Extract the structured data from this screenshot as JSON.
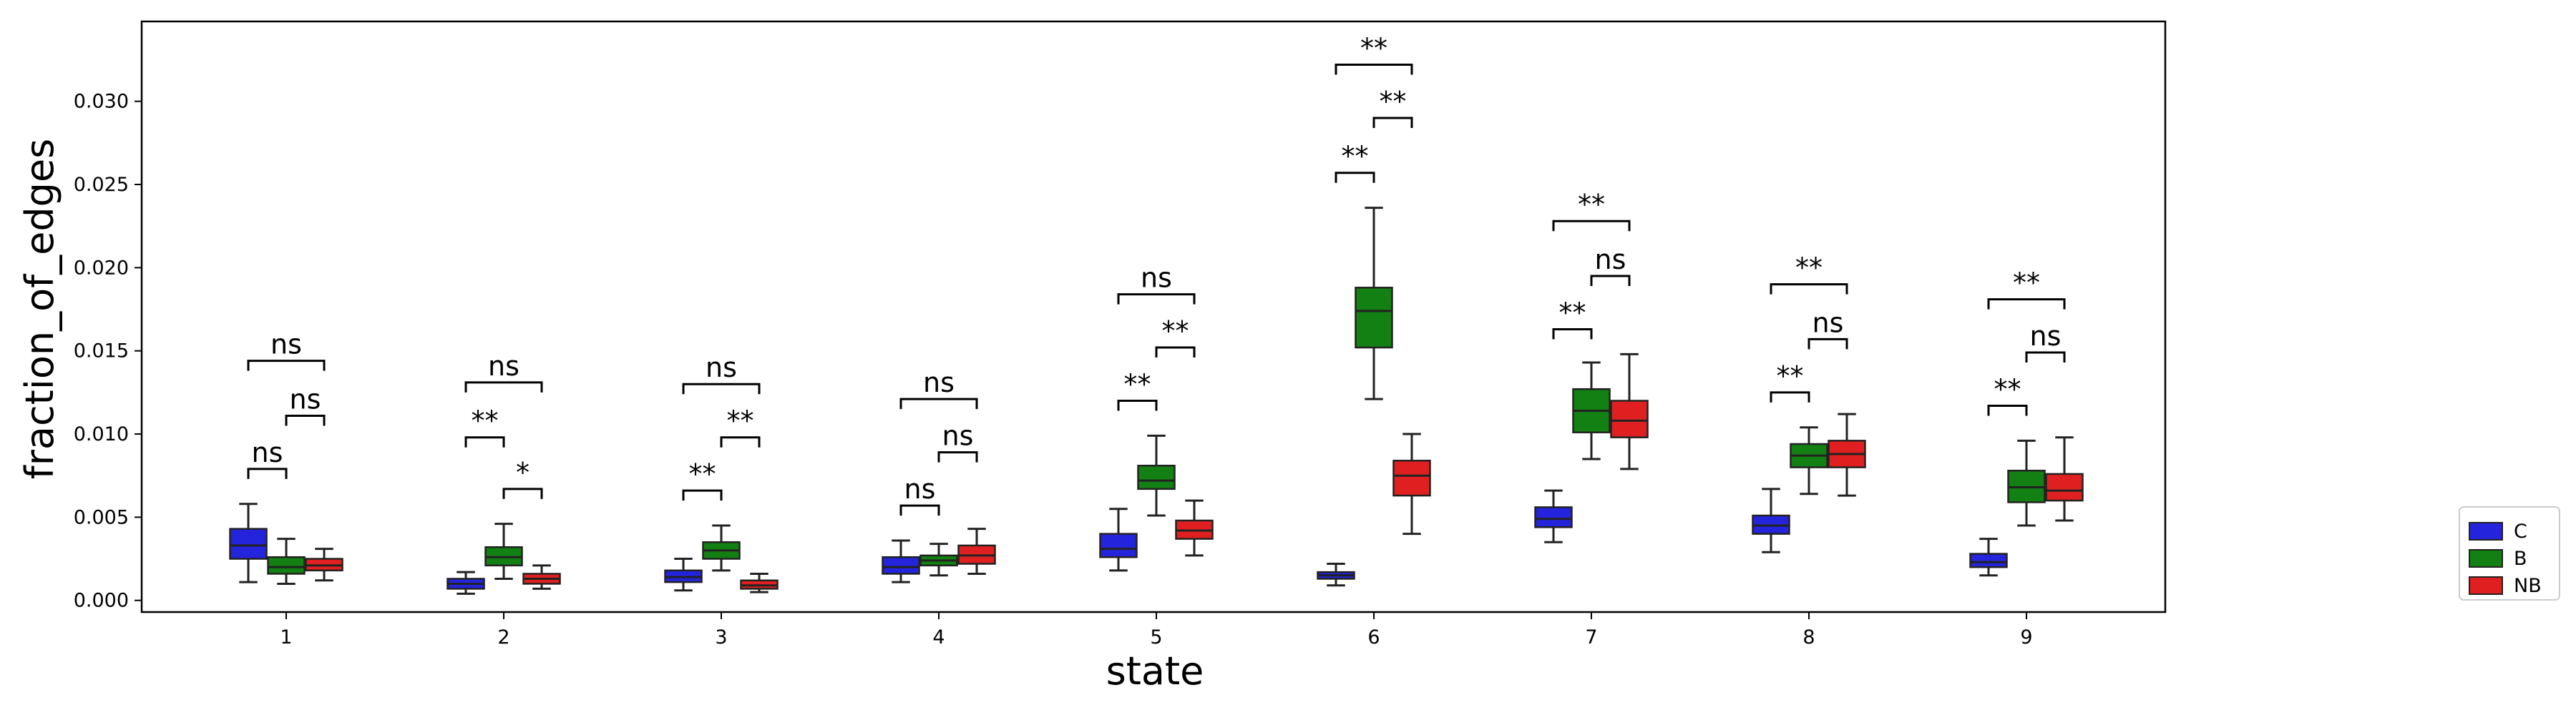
{
  "chart_data": {
    "type": "box",
    "xlabel": "state",
    "ylabel": "fraction_of_edges",
    "categories": [
      "1",
      "2",
      "3",
      "4",
      "5",
      "6",
      "7",
      "8",
      "9"
    ],
    "ylim": [
      -0.0007,
      0.0348
    ],
    "yticks": [
      0.0,
      0.005,
      0.01,
      0.015,
      0.02,
      0.025,
      0.03
    ],
    "ytick_labels": [
      "0.000",
      "0.005",
      "0.010",
      "0.015",
      "0.020",
      "0.025",
      "0.030"
    ],
    "grid": false,
    "legend_position": "right",
    "series": [
      {
        "name": "C",
        "color": "#2424dc",
        "boxes": [
          {
            "whislo": 0.0011,
            "q1": 0.0025,
            "med": 0.0033,
            "q3": 0.0043,
            "whishi": 0.0058
          },
          {
            "whislo": 0.0004,
            "q1": 0.0007,
            "med": 0.001,
            "q3": 0.0013,
            "whishi": 0.0017
          },
          {
            "whislo": 0.0006,
            "q1": 0.0011,
            "med": 0.0014,
            "q3": 0.0018,
            "whishi": 0.0025
          },
          {
            "whislo": 0.0011,
            "q1": 0.0016,
            "med": 0.002,
            "q3": 0.0026,
            "whishi": 0.0036
          },
          {
            "whislo": 0.0018,
            "q1": 0.0026,
            "med": 0.0031,
            "q3": 0.004,
            "whishi": 0.0055
          },
          {
            "whislo": 0.0009,
            "q1": 0.0013,
            "med": 0.0015,
            "q3": 0.0017,
            "whishi": 0.0022
          },
          {
            "whislo": 0.0035,
            "q1": 0.0044,
            "med": 0.0049,
            "q3": 0.0056,
            "whishi": 0.0066
          },
          {
            "whislo": 0.0029,
            "q1": 0.004,
            "med": 0.0045,
            "q3": 0.0051,
            "whishi": 0.0067
          },
          {
            "whislo": 0.0015,
            "q1": 0.002,
            "med": 0.0023,
            "q3": 0.0028,
            "whishi": 0.0037
          }
        ]
      },
      {
        "name": "B",
        "color": "#138013",
        "boxes": [
          {
            "whislo": 0.001,
            "q1": 0.0016,
            "med": 0.002,
            "q3": 0.0026,
            "whishi": 0.0037
          },
          {
            "whislo": 0.0013,
            "q1": 0.0021,
            "med": 0.0026,
            "q3": 0.0032,
            "whishi": 0.0046
          },
          {
            "whislo": 0.0018,
            "q1": 0.0025,
            "med": 0.003,
            "q3": 0.0035,
            "whishi": 0.0045
          },
          {
            "whislo": 0.0015,
            "q1": 0.0021,
            "med": 0.0024,
            "q3": 0.0027,
            "whishi": 0.0034
          },
          {
            "whislo": 0.0051,
            "q1": 0.0067,
            "med": 0.0072,
            "q3": 0.0081,
            "whishi": 0.0099
          },
          {
            "whislo": 0.0121,
            "q1": 0.0152,
            "med": 0.0174,
            "q3": 0.0188,
            "whishi": 0.0236
          },
          {
            "whislo": 0.0085,
            "q1": 0.0101,
            "med": 0.0114,
            "q3": 0.0127,
            "whishi": 0.0143
          },
          {
            "whislo": 0.0064,
            "q1": 0.008,
            "med": 0.0087,
            "q3": 0.0094,
            "whishi": 0.0104
          },
          {
            "whislo": 0.0045,
            "q1": 0.0059,
            "med": 0.0068,
            "q3": 0.0078,
            "whishi": 0.0096
          }
        ]
      },
      {
        "name": "NB",
        "color": "#e02020",
        "boxes": [
          {
            "whislo": 0.0012,
            "q1": 0.0018,
            "med": 0.0021,
            "q3": 0.0025,
            "whishi": 0.0031
          },
          {
            "whislo": 0.0007,
            "q1": 0.001,
            "med": 0.0013,
            "q3": 0.0016,
            "whishi": 0.0021
          },
          {
            "whislo": 0.0005,
            "q1": 0.0007,
            "med": 0.0009,
            "q3": 0.0012,
            "whishi": 0.0016
          },
          {
            "whislo": 0.0016,
            "q1": 0.0022,
            "med": 0.0027,
            "q3": 0.0033,
            "whishi": 0.0043
          },
          {
            "whislo": 0.0027,
            "q1": 0.0037,
            "med": 0.0042,
            "q3": 0.0048,
            "whishi": 0.006
          },
          {
            "whislo": 0.004,
            "q1": 0.0063,
            "med": 0.0075,
            "q3": 0.0084,
            "whishi": 0.01
          },
          {
            "whislo": 0.0079,
            "q1": 0.0098,
            "med": 0.0108,
            "q3": 0.012,
            "whishi": 0.0148
          },
          {
            "whislo": 0.0063,
            "q1": 0.008,
            "med": 0.0088,
            "q3": 0.0096,
            "whishi": 0.0112
          },
          {
            "whislo": 0.0048,
            "q1": 0.006,
            "med": 0.0066,
            "q3": 0.0076,
            "whishi": 0.0098
          }
        ]
      }
    ],
    "annotations": [
      {
        "category": "1",
        "pair": [
          "C",
          "B"
        ],
        "label": "ns",
        "y": 0.0079
      },
      {
        "category": "1",
        "pair": [
          "B",
          "NB"
        ],
        "label": "ns",
        "y": 0.0111
      },
      {
        "category": "1",
        "pair": [
          "C",
          "NB"
        ],
        "label": "ns",
        "y": 0.0144
      },
      {
        "category": "2",
        "pair": [
          "C",
          "B"
        ],
        "label": "**",
        "y": 0.0098
      },
      {
        "category": "2",
        "pair": [
          "B",
          "NB"
        ],
        "label": "*",
        "y": 0.0067
      },
      {
        "category": "2",
        "pair": [
          "C",
          "NB"
        ],
        "label": "ns",
        "y": 0.0131
      },
      {
        "category": "3",
        "pair": [
          "C",
          "B"
        ],
        "label": "**",
        "y": 0.0066
      },
      {
        "category": "3",
        "pair": [
          "B",
          "NB"
        ],
        "label": "**",
        "y": 0.0098
      },
      {
        "category": "3",
        "pair": [
          "C",
          "NB"
        ],
        "label": "ns",
        "y": 0.013
      },
      {
        "category": "4",
        "pair": [
          "C",
          "B"
        ],
        "label": "ns",
        "y": 0.0057
      },
      {
        "category": "4",
        "pair": [
          "B",
          "NB"
        ],
        "label": "ns",
        "y": 0.0089
      },
      {
        "category": "4",
        "pair": [
          "C",
          "NB"
        ],
        "label": "ns",
        "y": 0.0121
      },
      {
        "category": "5",
        "pair": [
          "C",
          "B"
        ],
        "label": "**",
        "y": 0.012
      },
      {
        "category": "5",
        "pair": [
          "B",
          "NB"
        ],
        "label": "**",
        "y": 0.0152
      },
      {
        "category": "5",
        "pair": [
          "C",
          "NB"
        ],
        "label": "ns",
        "y": 0.0184
      },
      {
        "category": "6",
        "pair": [
          "C",
          "B"
        ],
        "label": "**",
        "y": 0.0257
      },
      {
        "category": "6",
        "pair": [
          "B",
          "NB"
        ],
        "label": "**",
        "y": 0.029
      },
      {
        "category": "6",
        "pair": [
          "C",
          "NB"
        ],
        "label": "**",
        "y": 0.0322
      },
      {
        "category": "7",
        "pair": [
          "C",
          "B"
        ],
        "label": "**",
        "y": 0.0163
      },
      {
        "category": "7",
        "pair": [
          "B",
          "NB"
        ],
        "label": "ns",
        "y": 0.0195
      },
      {
        "category": "7",
        "pair": [
          "C",
          "NB"
        ],
        "label": "**",
        "y": 0.0228
      },
      {
        "category": "8",
        "pair": [
          "C",
          "B"
        ],
        "label": "**",
        "y": 0.0125
      },
      {
        "category": "8",
        "pair": [
          "B",
          "NB"
        ],
        "label": "ns",
        "y": 0.0157
      },
      {
        "category": "8",
        "pair": [
          "C",
          "NB"
        ],
        "label": "**",
        "y": 0.019
      },
      {
        "category": "9",
        "pair": [
          "C",
          "B"
        ],
        "label": "**",
        "y": 0.0117
      },
      {
        "category": "9",
        "pair": [
          "B",
          "NB"
        ],
        "label": "ns",
        "y": 0.0149
      },
      {
        "category": "9",
        "pair": [
          "C",
          "NB"
        ],
        "label": "**",
        "y": 0.0181
      }
    ]
  }
}
